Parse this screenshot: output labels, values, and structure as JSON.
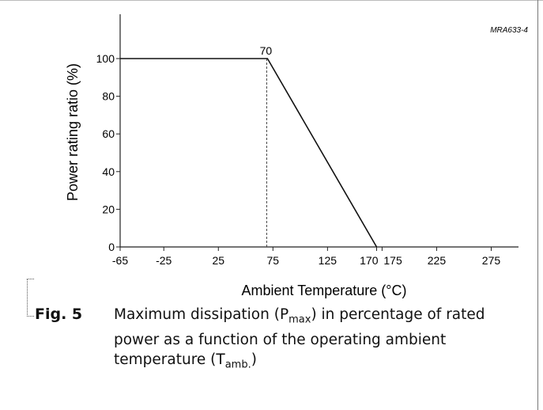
{
  "chart_data": {
    "type": "line",
    "code": "MRA633-4",
    "xlabel": "Ambient Temperature (°C)",
    "ylabel": "Power rating ratio (%)",
    "x_ticks": [
      -65,
      -25,
      25,
      75,
      125,
      170,
      175,
      225,
      275
    ],
    "y_ticks": [
      0,
      20,
      40,
      60,
      80,
      100
    ],
    "xlim": [
      -65,
      300
    ],
    "ylim": [
      0,
      120
    ],
    "series": [
      {
        "x": [
          -65,
          70,
          170
        ],
        "y": [
          100,
          100,
          0
        ]
      }
    ],
    "annotation": {
      "text": "70",
      "x": 70,
      "y": 100
    },
    "grid": false
  },
  "figure": {
    "label": "Fig. 5",
    "caption_1": "Maximum dissipation (P",
    "caption_sub_1": "max",
    "caption_2": ") in percentage of rated power as a function of the operating ambient temperature (T",
    "caption_sub_2": "amb.",
    "caption_3": ")"
  }
}
